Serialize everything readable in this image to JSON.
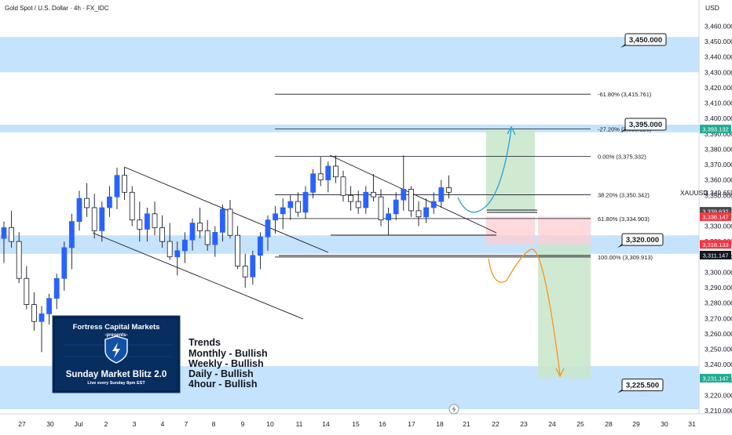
{
  "chart_data": {
    "type": "candlestick",
    "title": "Gold Spot / U.S. Dollar · 4h · FX_IDC",
    "currency": "USD",
    "symbol": "XAUUSD",
    "ylim": [
      3205,
      3470
    ],
    "y_ticks": [
      3210,
      3220,
      3230,
      3240,
      3250,
      3260,
      3270,
      3280,
      3290,
      3300,
      3310,
      3320,
      3330,
      3340,
      3350,
      3360,
      3370,
      3380,
      3390,
      3400,
      3410,
      3420,
      3430,
      3440,
      3450,
      3460
    ],
    "y_tick_labels": [
      "3,210.000",
      "3,220.000",
      "3,230.000",
      "3,240.000",
      "3,250.000",
      "3,260.000",
      "3,270.000",
      "3,280.000",
      "3,290.000",
      "3,300.000",
      "3,310.000",
      "3,320.000",
      "3,330.000",
      "3,340.000",
      "3,350.000",
      "3,360.000",
      "3,370.000",
      "3,380.000",
      "3,390.000",
      "3,400.000",
      "3,410.000",
      "3,420.000",
      "3,430.000",
      "3,440.000",
      "3,450.000",
      "3,460.000"
    ],
    "x_labels": [
      {
        "label": "27",
        "slot": 28
      },
      {
        "label": "30",
        "slot": 64
      },
      {
        "label": "Jul",
        "slot": 100
      },
      {
        "label": "2",
        "slot": 135
      },
      {
        "label": "3",
        "slot": 171
      },
      {
        "label": "4",
        "slot": 207
      },
      {
        "label": "7",
        "slot": 237
      },
      {
        "label": "8",
        "slot": 272
      },
      {
        "label": "9",
        "slot": 309
      },
      {
        "label": "10",
        "slot": 344
      },
      {
        "label": "11",
        "slot": 381
      },
      {
        "label": "14",
        "slot": 415
      },
      {
        "label": "15",
        "slot": 453
      },
      {
        "label": "16",
        "slot": 487
      },
      {
        "label": "17",
        "slot": 524
      },
      {
        "label": "18",
        "slot": 560
      },
      {
        "label": "21",
        "slot": 594
      },
      {
        "label": "22",
        "slot": 631
      },
      {
        "label": "23",
        "slot": 667
      },
      {
        "label": "24",
        "slot": 703
      },
      {
        "label": "25",
        "slot": 739
      },
      {
        "label": "28",
        "slot": 775
      },
      {
        "label": "29",
        "slot": 810
      },
      {
        "label": "30",
        "slot": 846
      },
      {
        "label": "31",
        "slot": 881
      }
    ],
    "zones": [
      {
        "from": 3430,
        "to": 3453,
        "color": "#bbdefb"
      },
      {
        "from": 3391,
        "to": 3396,
        "color": "#bbdefb"
      },
      {
        "from": 3312,
        "to": 3324,
        "color": "#bbdefb"
      },
      {
        "from": 3211,
        "to": 3239,
        "color": "#bbdefb"
      }
    ],
    "fib_levels": [
      {
        "label": "-61.80% (3,415.761)",
        "value": 3415.761
      },
      {
        "label": "-27.20% (3,393.126)",
        "value": 3393.126
      },
      {
        "label": "0.00% (3,375.332)",
        "value": 3375.332
      },
      {
        "label": "38.20% (3,350.342)",
        "value": 3350.342
      },
      {
        "label": "61.80% (3,334.903)",
        "value": 3334.903
      },
      {
        "label": "100.00% (3,309.913)",
        "value": 3309.913
      }
    ],
    "price_callouts": [
      {
        "label": "3,450.000",
        "value": 3450.0
      },
      {
        "label": "3,395.000",
        "value": 3395.0
      },
      {
        "label": "3,320.000",
        "value": 3320.0
      },
      {
        "label": "3,225.500",
        "value": 3225.5
      }
    ],
    "price_labels": [
      {
        "label": "3,393.132",
        "value": 3393.132,
        "color": "#22ab94"
      },
      {
        "label": "3,339.632",
        "value": 3339.632,
        "color": "#4a4a4a"
      },
      {
        "label": "3,336.147",
        "value": 3336.147,
        "color": "#f23645"
      },
      {
        "label": "3,318.133",
        "value": 3318.133,
        "color": "#f23645"
      },
      {
        "label": "3,311.147",
        "value": 3311.147,
        "color": "#131722"
      },
      {
        "label": "3,231.147",
        "value": 3231.147,
        "color": "#22ab94"
      }
    ],
    "last_price": 3349.655,
    "last_price_label": "3,349.655",
    "colors": {
      "up": "#2962ff",
      "down": "#ffffff",
      "wick": "#131722",
      "bg": "#ffffff",
      "grid": "#f0f3fa"
    },
    "grid": false,
    "candles": [
      [
        0,
        3322,
        3333,
        3306,
        3329
      ],
      [
        1,
        3329,
        3340,
        3316,
        3320
      ],
      [
        2,
        3320,
        3326,
        3293,
        3296
      ],
      [
        3,
        3296,
        3304,
        3276,
        3279
      ],
      [
        4,
        3279,
        3287,
        3262,
        3268
      ],
      [
        5,
        3268,
        3278,
        3248,
        3273
      ],
      [
        6,
        3273,
        3286,
        3266,
        3283
      ],
      [
        7,
        3283,
        3299,
        3276,
        3296
      ],
      [
        8,
        3296,
        3320,
        3288,
        3316
      ],
      [
        9,
        3316,
        3338,
        3302,
        3333
      ],
      [
        10,
        3333,
        3353,
        3327,
        3348
      ],
      [
        11,
        3348,
        3358,
        3336,
        3342
      ],
      [
        12,
        3342,
        3351,
        3322,
        3327
      ],
      [
        13,
        3327,
        3346,
        3320,
        3342
      ],
      [
        14,
        3342,
        3356,
        3336,
        3349
      ],
      [
        15,
        3349,
        3368,
        3341,
        3363
      ],
      [
        16,
        3363,
        3368,
        3347,
        3352
      ],
      [
        17,
        3352,
        3356,
        3330,
        3334
      ],
      [
        18,
        3334,
        3346,
        3320,
        3328
      ],
      [
        19,
        3328,
        3342,
        3320,
        3338
      ],
      [
        20,
        3338,
        3346,
        3324,
        3329
      ],
      [
        21,
        3329,
        3337,
        3316,
        3320
      ],
      [
        22,
        3320,
        3332,
        3308,
        3310
      ],
      [
        23,
        3310,
        3320,
        3298,
        3314
      ],
      [
        24,
        3314,
        3326,
        3306,
        3321
      ],
      [
        25,
        3321,
        3335,
        3314,
        3332
      ],
      [
        26,
        3332,
        3342,
        3322,
        3327
      ],
      [
        27,
        3327,
        3334,
        3314,
        3318
      ],
      [
        28,
        3318,
        3330,
        3310,
        3326
      ],
      [
        29,
        3326,
        3344,
        3320,
        3341
      ],
      [
        30,
        3341,
        3347,
        3322,
        3324
      ],
      [
        31,
        3324,
        3330,
        3302,
        3304
      ],
      [
        32,
        3304,
        3312,
        3290,
        3297
      ],
      [
        33,
        3297,
        3314,
        3292,
        3311
      ],
      [
        34,
        3311,
        3326,
        3302,
        3323
      ],
      [
        35,
        3323,
        3337,
        3314,
        3334
      ],
      [
        36,
        3334,
        3343,
        3325,
        3338
      ],
      [
        37,
        3338,
        3348,
        3328,
        3342
      ],
      [
        38,
        3342,
        3350,
        3334,
        3346
      ],
      [
        39,
        3346,
        3352,
        3336,
        3339
      ],
      [
        40,
        3339,
        3356,
        3335,
        3352
      ],
      [
        41,
        3352,
        3367,
        3348,
        3364
      ],
      [
        42,
        3364,
        3375,
        3356,
        3360
      ],
      [
        43,
        3360,
        3372,
        3352,
        3369
      ],
      [
        44,
        3369,
        3376,
        3358,
        3362
      ],
      [
        45,
        3362,
        3366,
        3346,
        3350
      ],
      [
        46,
        3350,
        3356,
        3340,
        3346
      ],
      [
        47,
        3346,
        3353,
        3338,
        3342
      ],
      [
        48,
        3342,
        3356,
        3338,
        3352
      ],
      [
        49,
        3352,
        3364,
        3346,
        3349
      ],
      [
        50,
        3349,
        3354,
        3330,
        3334
      ],
      [
        51,
        3334,
        3342,
        3324,
        3338
      ],
      [
        52,
        3338,
        3352,
        3334,
        3347
      ],
      [
        53,
        3347,
        3376,
        3340,
        3354
      ],
      [
        54,
        3354,
        3356,
        3336,
        3340
      ],
      [
        55,
        3340,
        3346,
        3330,
        3336
      ],
      [
        56,
        3336,
        3348,
        3332,
        3342
      ],
      [
        57,
        3342,
        3352,
        3338,
        3346
      ],
      [
        58,
        3346,
        3360,
        3342,
        3355
      ],
      [
        59,
        3355,
        3363,
        3348,
        3352
      ]
    ]
  }
}
